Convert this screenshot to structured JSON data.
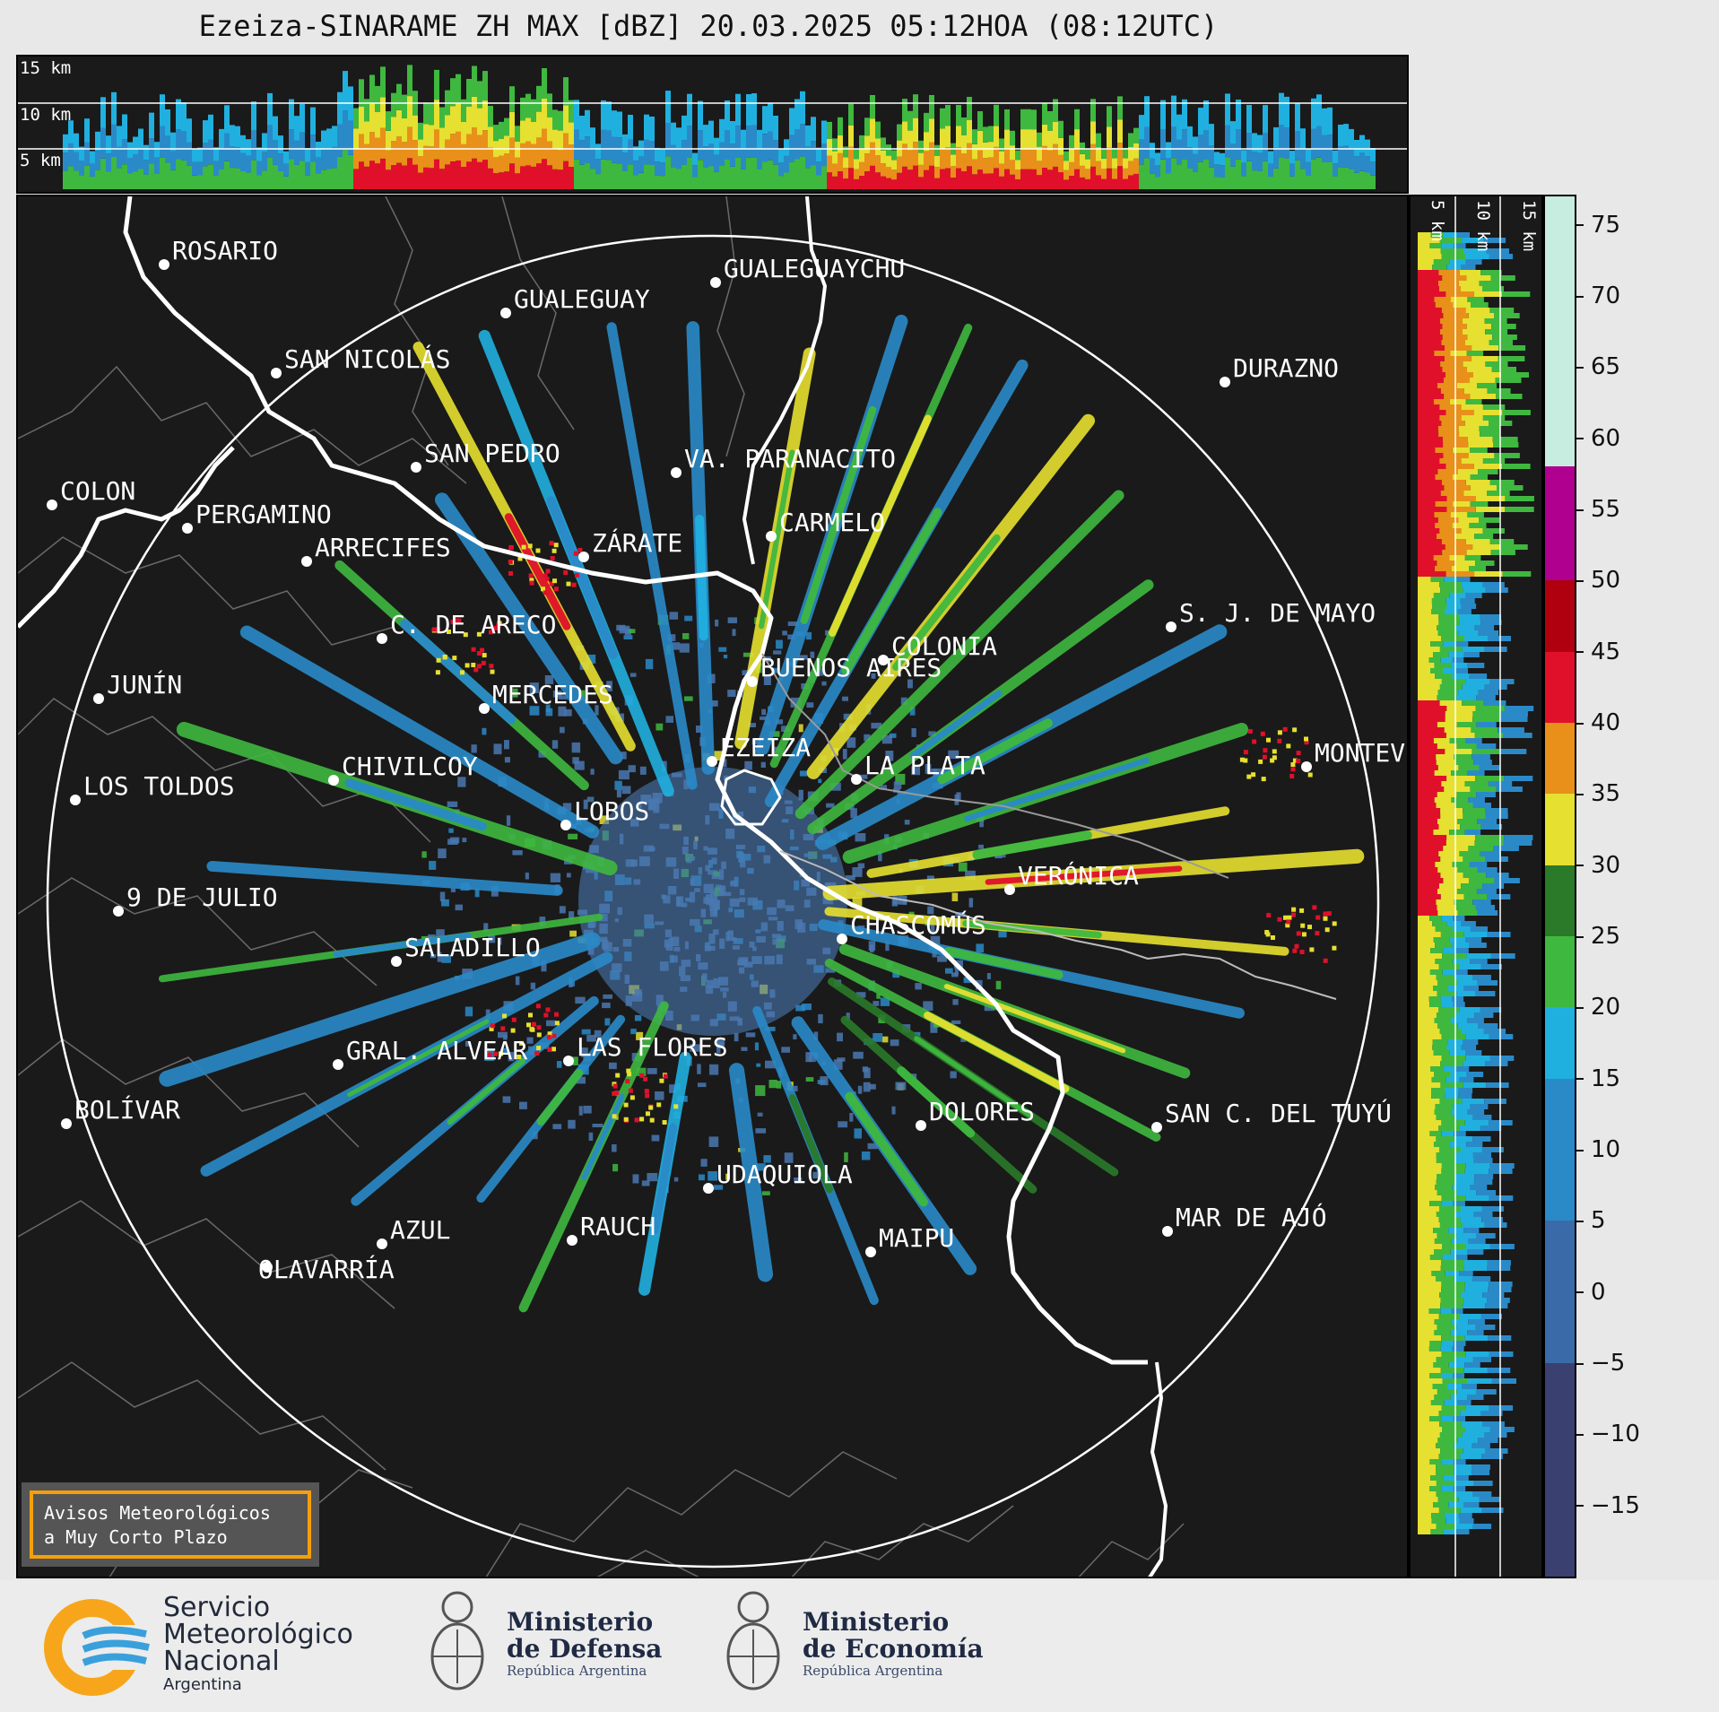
{
  "title": "Ezeiza-SINARAME ZH MAX [dBZ] 20.03.2025 05:12HOA (08:12UTC)",
  "top_panel": {
    "height_labels": [
      "15 km",
      "10 km",
      "5 km"
    ]
  },
  "side_panel": {
    "height_labels": [
      "5 km",
      "10 km",
      "15 km"
    ]
  },
  "colorbar": {
    "ticks": [
      "75",
      "70",
      "65",
      "60",
      "55",
      "50",
      "45",
      "40",
      "35",
      "30",
      "25",
      "20",
      "15",
      "10",
      "5",
      "0",
      "−5",
      "−10",
      "−15"
    ],
    "range": [
      -20,
      77
    ],
    "colors": [
      {
        "from": 58,
        "to": 77,
        "color": "#c7ece0"
      },
      {
        "from": 50,
        "to": 58,
        "color": "#b0008f"
      },
      {
        "from": 45,
        "to": 50,
        "color": "#b00010"
      },
      {
        "from": 40,
        "to": 45,
        "color": "#e0102a"
      },
      {
        "from": 35,
        "to": 40,
        "color": "#e8901a"
      },
      {
        "from": 30,
        "to": 35,
        "color": "#e6e030"
      },
      {
        "from": 25,
        "to": 30,
        "color": "#2a7a2a"
      },
      {
        "from": 20,
        "to": 25,
        "color": "#3fb83f"
      },
      {
        "from": 15,
        "to": 20,
        "color": "#20b0e0"
      },
      {
        "from": 5,
        "to": 15,
        "color": "#2a8ac8"
      },
      {
        "from": -5,
        "to": 5,
        "color": "#3a6aa8"
      },
      {
        "from": -20,
        "to": -5,
        "color": "#3a4070"
      }
    ]
  },
  "map": {
    "cities": [
      {
        "name": "ROSARIO"
      },
      {
        "name": "GUALEGUAYCHU"
      },
      {
        "name": "GUALEGUAY"
      },
      {
        "name": "SAN NICOLÁS"
      },
      {
        "name": "DURAZNO"
      },
      {
        "name": "SAN PEDRO"
      },
      {
        "name": "VA. PARANACITO"
      },
      {
        "name": "COLON"
      },
      {
        "name": "PERGAMINO"
      },
      {
        "name": "CARMELO"
      },
      {
        "name": "ARRECIFES"
      },
      {
        "name": "ZÁRATE"
      },
      {
        "name": "S. J. DE MAYO"
      },
      {
        "name": "C. DE ARECO"
      },
      {
        "name": "COLONIA"
      },
      {
        "name": "BUENOS AIRES"
      },
      {
        "name": "JUNÍN"
      },
      {
        "name": "MERCEDES"
      },
      {
        "name": "EZEIZA"
      },
      {
        "name": "MONTEVIDEO"
      },
      {
        "name": "CHIVILCOY"
      },
      {
        "name": "LA PLATA"
      },
      {
        "name": "LOS TOLDOS"
      },
      {
        "name": "LOBOS"
      },
      {
        "name": "VERÓNICA"
      },
      {
        "name": "9 DE JULIO"
      },
      {
        "name": "CHASCOMÚS"
      },
      {
        "name": "SALADILLO"
      },
      {
        "name": "GRAL. ALVEAR"
      },
      {
        "name": "LAS FLORES"
      },
      {
        "name": "DOLORES"
      },
      {
        "name": "BOLÍVAR"
      },
      {
        "name": "SAN C. DEL TUYÚ"
      },
      {
        "name": "UDAQUIOLA"
      },
      {
        "name": "MAR DE AJÓ"
      },
      {
        "name": "AZUL"
      },
      {
        "name": "RAUCH"
      },
      {
        "name": "OLAVARRÍA"
      },
      {
        "name": "MAIPU"
      }
    ]
  },
  "avisos": {
    "line1": "Avisos Meteorológicos",
    "line2": "a Muy Corto Plazo"
  },
  "footer": {
    "smn": {
      "line1": "Servicio",
      "line2": "Meteorológico",
      "line3": "Nacional",
      "line4": "Argentina"
    },
    "defensa": {
      "line1": "Ministerio",
      "line2": "de Defensa",
      "sub": "República Argentina"
    },
    "economia": {
      "line1": "Ministerio",
      "line2": "de Economía",
      "sub": "República Argentina"
    }
  }
}
